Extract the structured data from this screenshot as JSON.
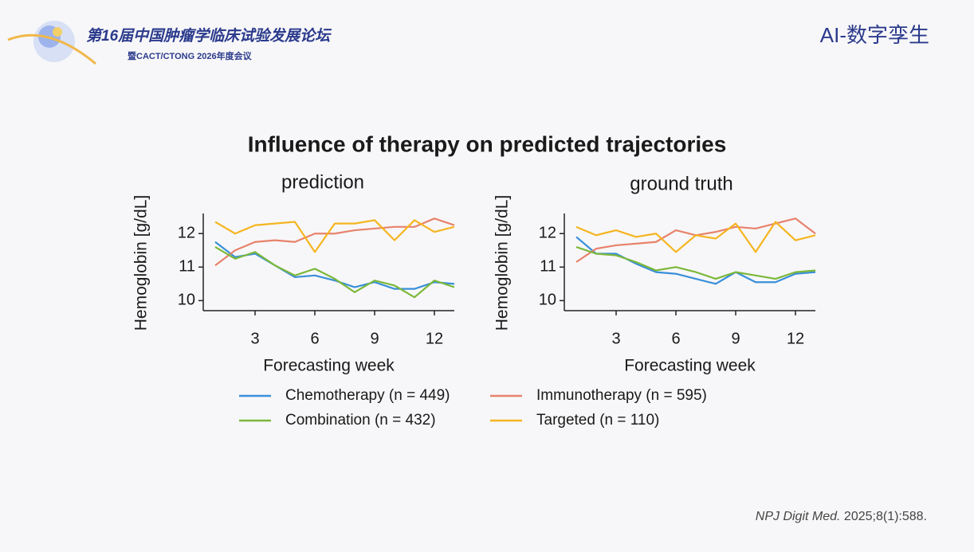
{
  "header": {
    "forum": "第16届中国肿瘤学临床试验发展论坛",
    "meeting": "暨CACT/CTONG 2026年度会议",
    "topic": "AI-数字孪生"
  },
  "title": "Influence of therapy on predicted trajectories",
  "citation": {
    "journal": "NPJ Digit Med.",
    "rest": "2025;8(1):588."
  },
  "chart_data": [
    {
      "type": "line",
      "title": "prediction",
      "x_label": "Forecasting week",
      "y_label": "Hemoglobin [g/dL]",
      "x": [
        1,
        2,
        3,
        4,
        5,
        6,
        7,
        8,
        9,
        10,
        11,
        12,
        13
      ],
      "xlim": [
        0.4,
        13
      ],
      "xticks": [
        3,
        6,
        9,
        12
      ],
      "ylim": [
        9.7,
        12.6
      ],
      "yticks": [
        10,
        11,
        12
      ],
      "series": [
        {
          "name": "Chemotherapy (n = 449)",
          "color": "#3a8fd9",
          "values": [
            11.75,
            11.3,
            11.4,
            11.05,
            10.7,
            10.75,
            10.6,
            10.4,
            10.55,
            10.35,
            10.35,
            10.55,
            10.5
          ]
        },
        {
          "name": "Immunotherapy (n = 595)",
          "color": "#e8826b",
          "values": [
            11.05,
            11.5,
            11.75,
            11.8,
            11.75,
            12.0,
            12.0,
            12.1,
            12.15,
            12.2,
            12.2,
            12.45,
            12.25
          ]
        },
        {
          "name": "Combination (n = 432)",
          "color": "#7cb83a",
          "values": [
            11.6,
            11.25,
            11.45,
            11.05,
            10.75,
            10.95,
            10.65,
            10.25,
            10.6,
            10.45,
            10.1,
            10.6,
            10.4
          ]
        },
        {
          "name": "Targeted (n = 110)",
          "color": "#f5b521",
          "values": [
            12.35,
            12.0,
            12.25,
            12.3,
            12.35,
            11.45,
            12.3,
            12.3,
            12.4,
            11.8,
            12.4,
            12.05,
            12.2
          ]
        }
      ]
    },
    {
      "type": "line",
      "title": "ground truth",
      "x_label": "Forecasting week",
      "y_label": "Hemoglobin [g/dL]",
      "x": [
        1,
        2,
        3,
        4,
        5,
        6,
        7,
        8,
        9,
        10,
        11,
        12,
        13
      ],
      "xlim": [
        0.4,
        13
      ],
      "xticks": [
        3,
        6,
        9,
        12
      ],
      "ylim": [
        9.7,
        12.6
      ],
      "yticks": [
        10,
        11,
        12
      ],
      "series": [
        {
          "color": "#3a8fd9",
          "values": [
            11.9,
            11.4,
            11.4,
            11.1,
            10.85,
            10.8,
            10.65,
            10.5,
            10.85,
            10.55,
            10.55,
            10.8,
            10.85
          ]
        },
        {
          "color": "#e8826b",
          "values": [
            11.15,
            11.55,
            11.65,
            11.7,
            11.75,
            12.1,
            11.95,
            12.05,
            12.2,
            12.15,
            12.3,
            12.45,
            12.0
          ]
        },
        {
          "color": "#7cb83a",
          "values": [
            11.6,
            11.4,
            11.35,
            11.15,
            10.9,
            11.0,
            10.85,
            10.65,
            10.85,
            10.75,
            10.65,
            10.85,
            10.9
          ]
        },
        {
          "color": "#f5b521",
          "values": [
            12.2,
            11.95,
            12.1,
            11.9,
            12.0,
            11.45,
            11.95,
            11.85,
            12.3,
            11.45,
            12.35,
            11.8,
            11.95
          ]
        }
      ]
    }
  ]
}
